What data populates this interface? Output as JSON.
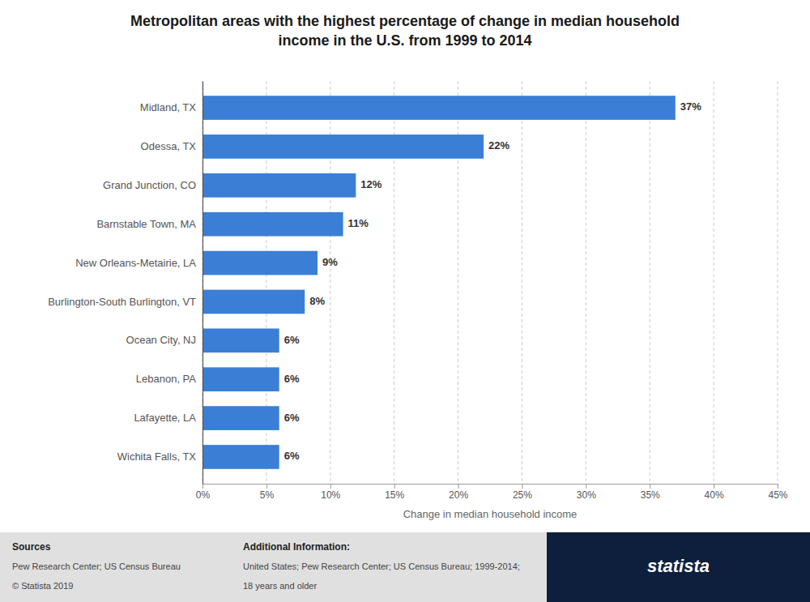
{
  "chart_data": {
    "type": "bar",
    "orientation": "horizontal",
    "title": "Metropolitan areas with the highest percentage of change in median household\nincome in the U.S. from 1999 to 2014",
    "categories": [
      "Wichita Falls, TX",
      "Lafayette, LA",
      "Lebanon, PA",
      "Ocean City, NJ",
      "Burlington-South Burlington, VT",
      "New Orleans-Metairie, LA",
      "Barnstable Town, MA",
      "Grand Junction, CO",
      "Odessa, TX",
      "Midland, TX"
    ],
    "values": [
      6,
      6,
      6,
      6,
      8,
      9,
      11,
      12,
      22,
      37
    ],
    "value_labels": [
      "6%",
      "6%",
      "6%",
      "6%",
      "8%",
      "9%",
      "11%",
      "12%",
      "22%",
      "37%"
    ],
    "data_labels": true,
    "color": "#3a7fd5",
    "xlabel": "Change in median household income",
    "xlim": [
      0,
      45
    ],
    "xticks": [
      {
        "value": 0,
        "label": "0%"
      },
      {
        "value": 5,
        "label": "5%"
      },
      {
        "value": 10,
        "label": "10%"
      },
      {
        "value": 15,
        "label": "15%"
      },
      {
        "value": 20,
        "label": "20%"
      },
      {
        "value": 25,
        "label": "25%"
      },
      {
        "value": 30,
        "label": "30%"
      },
      {
        "value": 35,
        "label": "35%"
      },
      {
        "value": 40,
        "label": "40%"
      },
      {
        "value": 45,
        "label": "45%"
      }
    ],
    "grid": true,
    "annotations": [
      "Sources",
      "Pew Research Center; US Census Bureau",
      "© Statista 2019",
      "Additional Information:",
      "United States; Pew Research Center; US Census Bureau; 1999-2014;",
      "18 years and older",
      "statista"
    ]
  }
}
